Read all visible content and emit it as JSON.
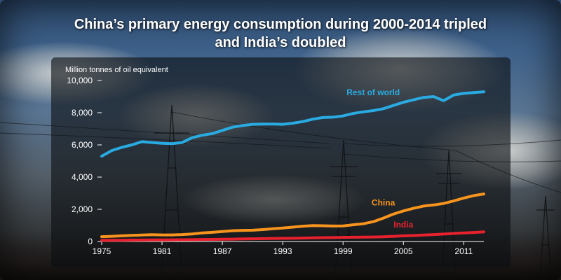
{
  "title_line1": "China’s primary energy consumption during 2000-2014 tripled",
  "title_line2": "and India’s doubled",
  "chart_data": {
    "type": "line",
    "title": "China’s primary energy consumption during 2000-2014 tripled and India’s doubled",
    "ylabel": "Million tonnes of oil equivalent",
    "xlabel": "",
    "xlim": [
      1975,
      2013
    ],
    "ylim": [
      0,
      10000
    ],
    "x_ticks": [
      1975,
      1981,
      1987,
      1993,
      1999,
      2005,
      2011
    ],
    "y_ticks": [
      0,
      2000,
      4000,
      6000,
      8000,
      10000
    ],
    "y_tick_labels": [
      "0",
      "2,000",
      "4,000",
      "6,000",
      "8,000",
      "10,000"
    ],
    "x": [
      1975,
      1976,
      1977,
      1978,
      1979,
      1980,
      1981,
      1982,
      1983,
      1984,
      1985,
      1986,
      1987,
      1988,
      1989,
      1990,
      1991,
      1992,
      1993,
      1994,
      1995,
      1996,
      1997,
      1998,
      1999,
      2000,
      2001,
      2002,
      2003,
      2004,
      2005,
      2006,
      2007,
      2008,
      2009,
      2010,
      2011,
      2012,
      2013
    ],
    "series": [
      {
        "name": "Rest of world",
        "color": "#29abe2",
        "values": [
          5300,
          5650,
          5850,
          6000,
          6200,
          6150,
          6100,
          6080,
          6150,
          6450,
          6600,
          6700,
          6900,
          7100,
          7200,
          7280,
          7290,
          7300,
          7280,
          7350,
          7450,
          7600,
          7700,
          7720,
          7800,
          7950,
          8050,
          8130,
          8250,
          8450,
          8650,
          8800,
          8950,
          9000,
          8750,
          9100,
          9200,
          9250,
          9300
        ]
      },
      {
        "name": "China",
        "color": "#f7941d",
        "values": [
          300,
          320,
          350,
          380,
          400,
          420,
          410,
          410,
          430,
          470,
          530,
          570,
          620,
          670,
          690,
          700,
          740,
          790,
          840,
          890,
          950,
          990,
          980,
          960,
          970,
          1040,
          1100,
          1230,
          1450,
          1700,
          1900,
          2060,
          2200,
          2270,
          2360,
          2520,
          2700,
          2850,
          2950
        ]
      },
      {
        "name": "India",
        "color": "#e8212e",
        "values": [
          70,
          75,
          80,
          85,
          90,
          95,
          100,
          105,
          110,
          115,
          125,
          130,
          140,
          150,
          160,
          170,
          180,
          190,
          195,
          200,
          215,
          225,
          240,
          245,
          255,
          265,
          270,
          280,
          290,
          320,
          350,
          370,
          400,
          430,
          460,
          500,
          530,
          560,
          600
        ]
      }
    ]
  }
}
